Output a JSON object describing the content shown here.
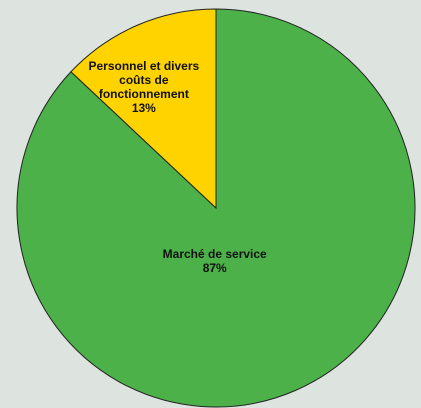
{
  "chart_data": {
    "type": "pie",
    "categories": [
      "Marché de service",
      "Personnel et divers coûts de fonctionnement"
    ],
    "values": [
      87,
      13
    ],
    "value_labels": [
      "87%",
      "13%"
    ],
    "colors": [
      "#4db14a",
      "#fed300"
    ]
  }
}
